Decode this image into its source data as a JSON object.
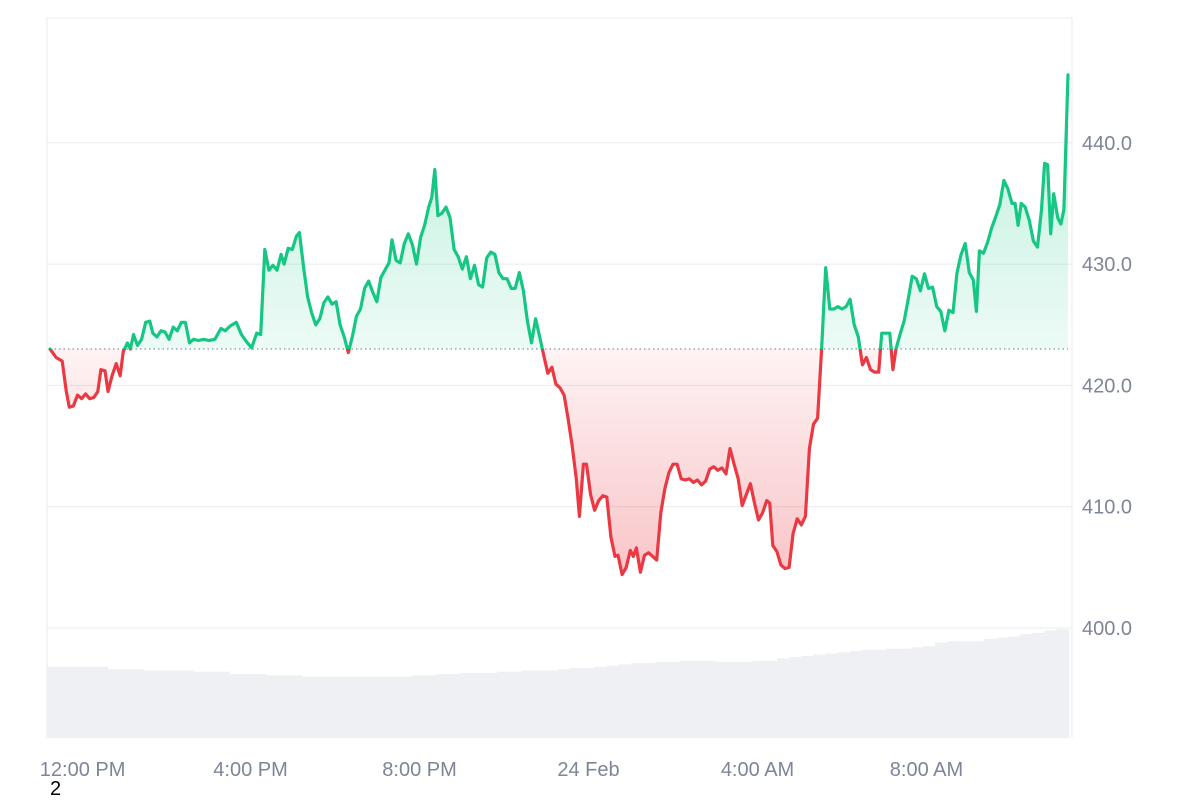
{
  "chart_data": {
    "type": "line",
    "baseline": 423.0,
    "ylim": [
      391,
      449
    ],
    "xlim": [
      0,
      1
    ],
    "grid": true,
    "legend": "none",
    "colors": {
      "up": "#16c784",
      "down": "#ea3943",
      "grid": "#e9ebef",
      "baseline": "#8a8f9c",
      "volume": "#eef0f4",
      "axis_text": "#7d8597"
    },
    "y_ticks": [
      {
        "value": 400,
        "label": "400.0"
      },
      {
        "value": 410,
        "label": "410.0"
      },
      {
        "value": 420,
        "label": "420.0"
      },
      {
        "value": 430,
        "label": "430.0"
      },
      {
        "value": 440,
        "label": "440.0"
      }
    ],
    "x_ticks": [
      {
        "t": 0.032,
        "label": "12:00 PM"
      },
      {
        "t": 0.197,
        "label": "4:00 PM"
      },
      {
        "t": 0.363,
        "label": "8:00 PM"
      },
      {
        "t": 0.529,
        "label": "24 Feb"
      },
      {
        "t": 0.695,
        "label": "4:00 AM"
      },
      {
        "t": 0.861,
        "label": "8:00 AM"
      }
    ],
    "footnote": "2",
    "series": [
      {
        "points": [
          [
            0.0,
            423.0
          ],
          [
            0.006,
            422.3
          ],
          [
            0.012,
            422.0
          ],
          [
            0.016,
            419.5
          ],
          [
            0.019,
            418.2
          ],
          [
            0.023,
            418.3
          ],
          [
            0.027,
            419.2
          ],
          [
            0.031,
            418.9
          ],
          [
            0.035,
            419.3
          ],
          [
            0.039,
            418.9
          ],
          [
            0.043,
            419.0
          ],
          [
            0.047,
            419.5
          ],
          [
            0.05,
            421.3
          ],
          [
            0.054,
            421.2
          ],
          [
            0.057,
            419.5
          ],
          [
            0.061,
            420.8
          ],
          [
            0.065,
            421.8
          ],
          [
            0.069,
            420.8
          ],
          [
            0.072,
            422.8
          ],
          [
            0.076,
            423.5
          ],
          [
            0.079,
            423.0
          ],
          [
            0.082,
            424.2
          ],
          [
            0.086,
            423.3
          ],
          [
            0.09,
            423.8
          ],
          [
            0.094,
            425.2
          ],
          [
            0.098,
            425.3
          ],
          [
            0.101,
            424.3
          ],
          [
            0.105,
            424.0
          ],
          [
            0.109,
            424.5
          ],
          [
            0.113,
            424.4
          ],
          [
            0.117,
            423.8
          ],
          [
            0.121,
            424.8
          ],
          [
            0.125,
            424.5
          ],
          [
            0.129,
            425.2
          ],
          [
            0.133,
            425.2
          ],
          [
            0.137,
            423.5
          ],
          [
            0.141,
            423.8
          ],
          [
            0.146,
            423.7
          ],
          [
            0.151,
            423.8
          ],
          [
            0.156,
            423.7
          ],
          [
            0.162,
            423.8
          ],
          [
            0.168,
            424.7
          ],
          [
            0.172,
            424.5
          ],
          [
            0.177,
            424.9
          ],
          [
            0.183,
            425.2
          ],
          [
            0.188,
            424.2
          ],
          [
            0.193,
            423.6
          ],
          [
            0.198,
            423.1
          ],
          [
            0.203,
            424.3
          ],
          [
            0.207,
            424.2
          ],
          [
            0.211,
            431.2
          ],
          [
            0.215,
            429.5
          ],
          [
            0.219,
            429.9
          ],
          [
            0.223,
            429.5
          ],
          [
            0.227,
            430.8
          ],
          [
            0.23,
            430.0
          ],
          [
            0.234,
            431.3
          ],
          [
            0.238,
            431.2
          ],
          [
            0.242,
            432.3
          ],
          [
            0.245,
            432.6
          ],
          [
            0.249,
            429.8
          ],
          [
            0.253,
            427.3
          ],
          [
            0.257,
            426.0
          ],
          [
            0.261,
            425.0
          ],
          [
            0.265,
            425.5
          ],
          [
            0.269,
            426.8
          ],
          [
            0.273,
            427.3
          ],
          [
            0.277,
            426.7
          ],
          [
            0.281,
            426.9
          ],
          [
            0.285,
            425.0
          ],
          [
            0.289,
            424.0
          ],
          [
            0.293,
            422.7
          ],
          [
            0.297,
            424.0
          ],
          [
            0.301,
            425.7
          ],
          [
            0.305,
            426.3
          ],
          [
            0.309,
            428.0
          ],
          [
            0.313,
            428.6
          ],
          [
            0.317,
            427.7
          ],
          [
            0.321,
            426.9
          ],
          [
            0.325,
            428.9
          ],
          [
            0.329,
            429.5
          ],
          [
            0.333,
            430.1
          ],
          [
            0.336,
            432.0
          ],
          [
            0.34,
            430.3
          ],
          [
            0.344,
            430.1
          ],
          [
            0.348,
            431.7
          ],
          [
            0.352,
            432.5
          ],
          [
            0.356,
            431.6
          ],
          [
            0.36,
            430.0
          ],
          [
            0.364,
            432.2
          ],
          [
            0.368,
            433.2
          ],
          [
            0.372,
            434.7
          ],
          [
            0.375,
            435.5
          ],
          [
            0.378,
            437.8
          ],
          [
            0.381,
            434.0
          ],
          [
            0.385,
            434.2
          ],
          [
            0.389,
            434.7
          ],
          [
            0.393,
            433.8
          ],
          [
            0.397,
            431.2
          ],
          [
            0.401,
            430.6
          ],
          [
            0.405,
            429.6
          ],
          [
            0.409,
            430.6
          ],
          [
            0.413,
            428.8
          ],
          [
            0.417,
            429.9
          ],
          [
            0.421,
            428.3
          ],
          [
            0.425,
            428.1
          ],
          [
            0.429,
            430.5
          ],
          [
            0.433,
            431.0
          ],
          [
            0.437,
            430.8
          ],
          [
            0.441,
            429.3
          ],
          [
            0.445,
            428.8
          ],
          [
            0.449,
            428.8
          ],
          [
            0.453,
            428.0
          ],
          [
            0.457,
            428.0
          ],
          [
            0.461,
            429.3
          ],
          [
            0.465,
            427.8
          ],
          [
            0.469,
            425.3
          ],
          [
            0.473,
            423.5
          ],
          [
            0.477,
            425.5
          ],
          [
            0.481,
            424.0
          ],
          [
            0.485,
            422.5
          ],
          [
            0.489,
            421.0
          ],
          [
            0.493,
            421.5
          ],
          [
            0.497,
            420.1
          ],
          [
            0.501,
            419.8
          ],
          [
            0.505,
            419.2
          ],
          [
            0.509,
            417.2
          ],
          [
            0.513,
            415.0
          ],
          [
            0.517,
            412.3
          ],
          [
            0.52,
            409.2
          ],
          [
            0.524,
            413.5
          ],
          [
            0.527,
            413.5
          ],
          [
            0.531,
            411.0
          ],
          [
            0.535,
            409.7
          ],
          [
            0.539,
            410.5
          ],
          [
            0.543,
            410.9
          ],
          [
            0.547,
            410.8
          ],
          [
            0.551,
            407.5
          ],
          [
            0.555,
            405.9
          ],
          [
            0.558,
            406.0
          ],
          [
            0.562,
            404.4
          ],
          [
            0.566,
            405.0
          ],
          [
            0.57,
            406.4
          ],
          [
            0.573,
            405.9
          ],
          [
            0.576,
            406.6
          ],
          [
            0.58,
            404.6
          ],
          [
            0.584,
            406.0
          ],
          [
            0.588,
            406.2
          ],
          [
            0.592,
            405.9
          ],
          [
            0.596,
            405.6
          ],
          [
            0.6,
            409.5
          ],
          [
            0.604,
            411.5
          ],
          [
            0.608,
            412.8
          ],
          [
            0.612,
            413.5
          ],
          [
            0.616,
            413.5
          ],
          [
            0.62,
            412.3
          ],
          [
            0.624,
            412.2
          ],
          [
            0.628,
            412.3
          ],
          [
            0.632,
            412.0
          ],
          [
            0.636,
            412.2
          ],
          [
            0.64,
            411.8
          ],
          [
            0.644,
            412.1
          ],
          [
            0.648,
            413.1
          ],
          [
            0.652,
            413.3
          ],
          [
            0.656,
            413.0
          ],
          [
            0.66,
            413.2
          ],
          [
            0.664,
            412.7
          ],
          [
            0.668,
            414.8
          ],
          [
            0.672,
            413.5
          ],
          [
            0.676,
            412.3
          ],
          [
            0.68,
            410.1
          ],
          [
            0.684,
            411.0
          ],
          [
            0.688,
            411.9
          ],
          [
            0.692,
            410.3
          ],
          [
            0.696,
            408.9
          ],
          [
            0.7,
            409.5
          ],
          [
            0.704,
            410.5
          ],
          [
            0.707,
            410.3
          ],
          [
            0.71,
            406.8
          ],
          [
            0.714,
            406.3
          ],
          [
            0.718,
            405.2
          ],
          [
            0.722,
            404.9
          ],
          [
            0.726,
            405.0
          ],
          [
            0.73,
            407.8
          ],
          [
            0.734,
            409.0
          ],
          [
            0.738,
            408.5
          ],
          [
            0.742,
            409.2
          ],
          [
            0.746,
            414.8
          ],
          [
            0.75,
            416.8
          ],
          [
            0.754,
            417.3
          ],
          [
            0.758,
            423.0
          ],
          [
            0.762,
            429.7
          ],
          [
            0.766,
            426.3
          ],
          [
            0.77,
            426.3
          ],
          [
            0.774,
            426.5
          ],
          [
            0.778,
            426.3
          ],
          [
            0.782,
            426.5
          ],
          [
            0.786,
            427.1
          ],
          [
            0.79,
            425.0
          ],
          [
            0.794,
            424.0
          ],
          [
            0.798,
            421.7
          ],
          [
            0.802,
            422.3
          ],
          [
            0.806,
            421.3
          ],
          [
            0.81,
            421.1
          ],
          [
            0.814,
            421.1
          ],
          [
            0.817,
            424.3
          ],
          [
            0.821,
            424.3
          ],
          [
            0.825,
            424.3
          ],
          [
            0.828,
            421.3
          ],
          [
            0.831,
            423.0
          ],
          [
            0.835,
            424.2
          ],
          [
            0.839,
            425.3
          ],
          [
            0.843,
            427.1
          ],
          [
            0.847,
            429.0
          ],
          [
            0.851,
            428.8
          ],
          [
            0.855,
            427.8
          ],
          [
            0.859,
            429.2
          ],
          [
            0.863,
            428.0
          ],
          [
            0.867,
            428.1
          ],
          [
            0.871,
            426.5
          ],
          [
            0.875,
            426.1
          ],
          [
            0.879,
            424.5
          ],
          [
            0.883,
            426.2
          ],
          [
            0.887,
            426.0
          ],
          [
            0.891,
            429.3
          ],
          [
            0.895,
            430.8
          ],
          [
            0.899,
            431.7
          ],
          [
            0.903,
            429.3
          ],
          [
            0.907,
            428.7
          ],
          [
            0.91,
            426.1
          ],
          [
            0.913,
            431.1
          ],
          [
            0.917,
            430.9
          ],
          [
            0.921,
            431.8
          ],
          [
            0.925,
            433.0
          ],
          [
            0.929,
            433.9
          ],
          [
            0.933,
            434.9
          ],
          [
            0.937,
            436.9
          ],
          [
            0.941,
            436.2
          ],
          [
            0.945,
            435.0
          ],
          [
            0.948,
            435.0
          ],
          [
            0.951,
            433.2
          ],
          [
            0.954,
            435.0
          ],
          [
            0.958,
            434.7
          ],
          [
            0.962,
            433.6
          ],
          [
            0.966,
            431.9
          ],
          [
            0.97,
            431.4
          ],
          [
            0.974,
            434.5
          ],
          [
            0.977,
            438.3
          ],
          [
            0.98,
            438.2
          ],
          [
            0.983,
            432.5
          ],
          [
            0.986,
            435.8
          ],
          [
            0.99,
            433.8
          ],
          [
            0.993,
            433.3
          ],
          [
            0.996,
            434.5
          ],
          [
            1.0,
            445.6
          ]
        ]
      }
    ],
    "volume": [
      396.8,
      396.8,
      396.8,
      396.8,
      396.8,
      396.6,
      396.6,
      396.6,
      396.5,
      396.5,
      396.5,
      396.5,
      396.4,
      396.4,
      396.4,
      396.2,
      396.2,
      396.2,
      396.1,
      396.1,
      396.1,
      396.0,
      396.0,
      396.0,
      396.0,
      396.0,
      396.0,
      396.0,
      396.0,
      396.0,
      396.1,
      396.1,
      396.2,
      396.2,
      396.3,
      396.3,
      396.3,
      396.4,
      396.4,
      396.5,
      396.5,
      396.5,
      396.6,
      396.7,
      396.7,
      396.8,
      396.9,
      397.0,
      397.1,
      397.1,
      397.2,
      397.2,
      397.3,
      397.3,
      397.3,
      397.2,
      397.2,
      397.2,
      397.3,
      397.3,
      397.5,
      397.6,
      397.7,
      397.8,
      397.9,
      398.0,
      398.1,
      398.2,
      398.2,
      398.3,
      398.3,
      398.4,
      398.5,
      398.8,
      398.9,
      398.9,
      398.9,
      399.1,
      399.2,
      399.3,
      399.5,
      399.6,
      399.8,
      399.9
    ]
  }
}
